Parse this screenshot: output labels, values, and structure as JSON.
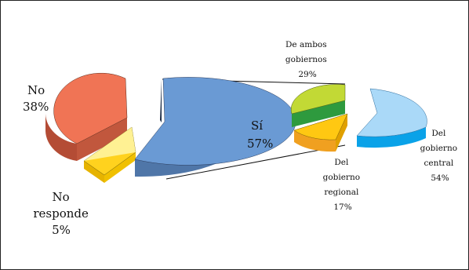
{
  "chart_data": [
    {
      "type": "pie",
      "slices": [
        {
          "label": "Sí",
          "value": 57,
          "display": "57%",
          "color": "#6a9ad4"
        },
        {
          "label": "No",
          "value": 38,
          "display": "38%",
          "color": "#f07455"
        },
        {
          "label": "No responde",
          "value": 5,
          "display": "5%",
          "color": "#ffd21e"
        }
      ]
    },
    {
      "type": "pie",
      "breakdown_of": "Sí",
      "slices": [
        {
          "label": "Del gobierno central",
          "value": 54,
          "display": "54%",
          "color": "#aad9f8"
        },
        {
          "label": "De ambos gobiernos",
          "value": 29,
          "display": "29%",
          "color": "#c2d935"
        },
        {
          "label": "Del gobierno regional",
          "value": 17,
          "display": "17%",
          "color": "#ffc812"
        }
      ]
    }
  ],
  "labels": {
    "si_line1": "Sí",
    "si_line2": "57%",
    "no_line1": "No",
    "no_line2": "38%",
    "nr_line1": "No",
    "nr_line2": "responde",
    "nr_line3": "5%",
    "ambos_line1": "De ambos",
    "ambos_line2": "gobiernos",
    "ambos_line3": "29%",
    "central_line1": "Del",
    "central_line2": "gobierno",
    "central_line3": "central",
    "central_line4": "54%",
    "regional_line1": "Del",
    "regional_line2": "gobierno",
    "regional_line3": "regional",
    "regional_line4": "17%"
  }
}
